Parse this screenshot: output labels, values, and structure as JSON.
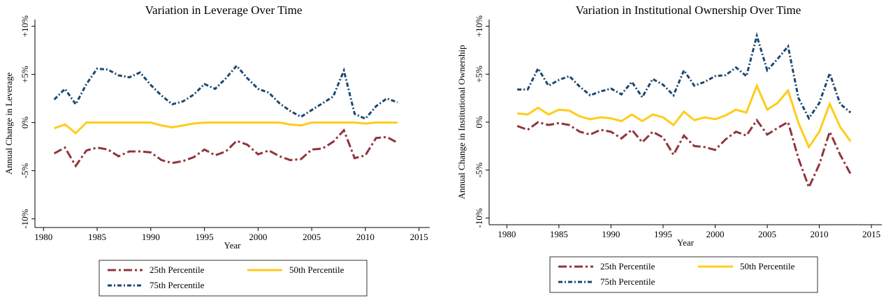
{
  "chart_data": [
    {
      "type": "line",
      "title": "Variation in Leverage Over Time",
      "x_label": "Year",
      "y_label": "Annual Change in Leverage",
      "x": [
        1981,
        1982,
        1983,
        1984,
        1985,
        1986,
        1987,
        1988,
        1989,
        1990,
        1991,
        1992,
        1993,
        1994,
        1995,
        1996,
        1997,
        1998,
        1999,
        2000,
        2001,
        2002,
        2003,
        2004,
        2005,
        2006,
        2007,
        2008,
        2009,
        2010,
        2011,
        2012,
        2013
      ],
      "series": [
        {
          "name": "25th Percentile",
          "color": "#90353b",
          "values": [
            -3.2,
            -2.6,
            -4.5,
            -2.9,
            -2.6,
            -2.8,
            -3.5,
            -3.0,
            -3.0,
            -3.1,
            -3.9,
            -4.2,
            -4.0,
            -3.6,
            -2.8,
            -3.4,
            -3.0,
            -1.9,
            -2.3,
            -3.3,
            -2.9,
            -3.5,
            -3.9,
            -3.8,
            -2.8,
            -2.7,
            -2.0,
            -0.8,
            -3.7,
            -3.4,
            -1.6,
            -1.5,
            -2.1
          ]
        },
        {
          "name": "50th Percentile",
          "color": "#ffcc1a",
          "values": [
            -0.6,
            -0.2,
            -1.1,
            0,
            0,
            0,
            0,
            0,
            0,
            0,
            -0.3,
            -0.5,
            -0.3,
            -0.1,
            0,
            0,
            0,
            0,
            0,
            0,
            0,
            0,
            -0.2,
            -0.3,
            0,
            0,
            0,
            0,
            0,
            -0.1,
            0,
            0,
            0
          ]
        },
        {
          "name": "75th Percentile",
          "color": "#1a476f",
          "values": [
            2.4,
            3.5,
            1.9,
            4.0,
            5.6,
            5.5,
            4.9,
            4.7,
            5.2,
            3.9,
            2.8,
            1.9,
            2.2,
            2.9,
            4.0,
            3.5,
            4.6,
            5.9,
            4.6,
            3.5,
            3.1,
            2.0,
            1.2,
            0.6,
            1.3,
            2.0,
            2.7,
            5.4,
            0.9,
            0.4,
            1.7,
            2.5,
            2.1
          ]
        }
      ],
      "xlim": [
        1979.2,
        2016
      ],
      "ylim": [
        -10.9,
        10.7
      ],
      "xticks": [
        1980,
        1985,
        1990,
        1995,
        2000,
        2005,
        2010,
        2015
      ],
      "yticks": [
        {
          "value": -10,
          "label": "-10%"
        },
        {
          "value": -5,
          "label": "-5%"
        },
        {
          "value": 0,
          "label": "0%"
        },
        {
          "value": 5,
          "label": "+5%"
        },
        {
          "value": 10,
          "label": "+10%"
        }
      ],
      "legend": "bottom"
    },
    {
      "type": "line",
      "title": "Variation in Institutional Ownership Over Time",
      "x_label": "Year",
      "y_label": "Annual Change in Institutional Ownership",
      "x": [
        1981,
        1982,
        1983,
        1984,
        1985,
        1986,
        1987,
        1988,
        1989,
        1990,
        1991,
        1992,
        1993,
        1994,
        1995,
        1996,
        1997,
        1998,
        1999,
        2000,
        2001,
        2002,
        2003,
        2004,
        2005,
        2006,
        2007,
        2008,
        2009,
        2010,
        2011,
        2012,
        2013
      ],
      "series": [
        {
          "name": "25th Percentile",
          "color": "#90353b",
          "values": [
            -0.4,
            -0.8,
            0,
            -0.3,
            -0.1,
            -0.3,
            -1.0,
            -1.3,
            -0.8,
            -1.0,
            -1.7,
            -0.8,
            -2.1,
            -1.0,
            -1.6,
            -3.4,
            -1.4,
            -2.5,
            -2.6,
            -2.9,
            -1.8,
            -1.0,
            -1.4,
            0.2,
            -1.3,
            -0.6,
            0,
            -3.8,
            -6.8,
            -4.4,
            -1.0,
            -3.4,
            -5.4
          ]
        },
        {
          "name": "50th Percentile",
          "color": "#ffcc1a",
          "values": [
            0.9,
            0.8,
            1.5,
            0.8,
            1.3,
            1.2,
            0.6,
            0.3,
            0.5,
            0.4,
            0.1,
            0.8,
            0.1,
            0.8,
            0.5,
            -0.3,
            1.1,
            0.2,
            0.5,
            0.3,
            0.7,
            1.3,
            1.0,
            3.8,
            1.3,
            2.0,
            3.3,
            -0.1,
            -2.6,
            -1.0,
            1.9,
            -0.5,
            -2.0
          ]
        },
        {
          "name": "75th Percentile",
          "color": "#1a476f",
          "values": [
            3.4,
            3.4,
            5.6,
            3.8,
            4.4,
            4.8,
            3.7,
            2.8,
            3.2,
            3.5,
            2.9,
            4.2,
            2.6,
            4.5,
            3.9,
            2.8,
            5.4,
            3.8,
            4.2,
            4.8,
            4.9,
            5.7,
            4.8,
            9.0,
            5.4,
            6.6,
            7.9,
            2.5,
            0.4,
            2.0,
            5.1,
            1.9,
            1.0
          ]
        }
      ],
      "xlim": [
        1978.3,
        2016
      ],
      "ylim": [
        -10.7,
        10.7
      ],
      "xticks": [
        1980,
        1985,
        1990,
        1995,
        2000,
        2005,
        2010,
        2015
      ],
      "yticks": [
        {
          "value": -10,
          "label": "-10%"
        },
        {
          "value": -5,
          "label": "-5%"
        },
        {
          "value": 0,
          "label": "0%"
        },
        {
          "value": 5,
          "label": "+5%"
        },
        {
          "value": 10,
          "label": "+10%"
        }
      ],
      "legend": "bottom"
    }
  ]
}
